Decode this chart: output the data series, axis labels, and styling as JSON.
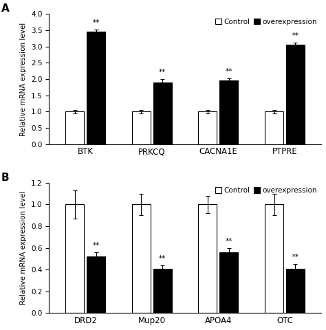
{
  "panel_A": {
    "genes": [
      "BTK",
      "PRKCQ",
      "CACNA1E",
      "PTPRE"
    ],
    "control_values": [
      1.0,
      1.0,
      1.0,
      1.0
    ],
    "control_errors": [
      0.05,
      0.05,
      0.05,
      0.05
    ],
    "overexpr_values": [
      3.45,
      1.9,
      1.95,
      3.05
    ],
    "overexpr_errors": [
      0.07,
      0.1,
      0.07,
      0.07
    ],
    "ylim": [
      0,
      4.0
    ],
    "yticks": [
      0,
      0.5,
      1.0,
      1.5,
      2.0,
      2.5,
      3.0,
      3.5,
      4.0
    ],
    "ylabel": "Relative mRNA expression level",
    "panel_label": "A"
  },
  "panel_B": {
    "genes": [
      "DRD2",
      "Mup20",
      "APOA4",
      "OTC"
    ],
    "control_values": [
      1.0,
      1.0,
      1.0,
      1.0
    ],
    "control_errors": [
      0.13,
      0.1,
      0.08,
      0.1
    ],
    "overexpr_values": [
      0.52,
      0.41,
      0.56,
      0.41
    ],
    "overexpr_errors": [
      0.04,
      0.03,
      0.04,
      0.04
    ],
    "ylim": [
      0,
      1.2
    ],
    "yticks": [
      0,
      0.2,
      0.4,
      0.6,
      0.8,
      1.0,
      1.2
    ],
    "ylabel": "Relative mRNA expression level",
    "panel_label": "B"
  },
  "bar_width": 0.28,
  "bar_gap": 0.04,
  "control_color": "white",
  "control_edgecolor": "black",
  "overexpr_color": "black",
  "overexpr_edgecolor": "black",
  "legend_labels": [
    "Control",
    "overexpression"
  ],
  "significance_label": "**",
  "fontsize_axis": 7.5,
  "fontsize_tick": 7.5,
  "fontsize_legend": 7.5,
  "fontsize_panel": 11,
  "fontsize_sig": 7.5,
  "fontsize_gene": 8.5
}
